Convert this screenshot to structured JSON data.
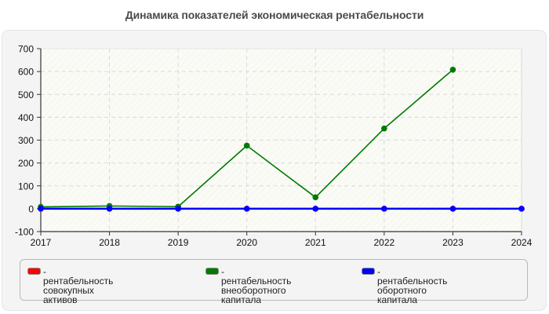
{
  "title": "Динамика показателей экономическая рентабельности",
  "colors": {
    "red": "#ff0000",
    "green": "#007a00",
    "blue": "#0000ff",
    "grid": "#d9d9d9",
    "axis": "#333333",
    "plot_bg": "#fbfcf5"
  },
  "legend": {
    "items": [
      {
        "label": "- рентабельность совокупных\nактивов",
        "color": "#ff0000"
      },
      {
        "label": "- рентабельность\nвнеоборотного капитала",
        "color": "#007a00"
      },
      {
        "label": "- рентабельность оборотного\nкапитала",
        "color": "#0000ff"
      }
    ]
  },
  "chart_data": {
    "type": "line",
    "title": "Динамика показателей экономическая рентабельности",
    "xlabel": "",
    "ylabel": "",
    "categories": [
      "2017",
      "2018",
      "2019",
      "2020",
      "2021",
      "2022",
      "2023",
      "2024"
    ],
    "x_ticks": [
      "2017",
      "2018",
      "2019",
      "2020",
      "2021",
      "2022",
      "2023",
      "2024"
    ],
    "y_ticks": [
      700,
      600,
      500,
      400,
      300,
      200,
      100,
      0,
      -100
    ],
    "ylim": [
      -100,
      700
    ],
    "grid": true,
    "legend_position": "bottom",
    "series": [
      {
        "name": "рентабельность совокупных активов",
        "color": "#ff0000",
        "values": [
          0,
          0,
          0,
          0,
          0,
          0,
          0,
          0
        ]
      },
      {
        "name": "рентабельность внеоборотного капитала",
        "color": "#007a00",
        "values": [
          8,
          12,
          9,
          276,
          50,
          351,
          608,
          null
        ]
      },
      {
        "name": "рентабельность оборотного капитала",
        "color": "#0000ff",
        "values": [
          0,
          0,
          0,
          0,
          0,
          0,
          0,
          0
        ]
      }
    ]
  }
}
